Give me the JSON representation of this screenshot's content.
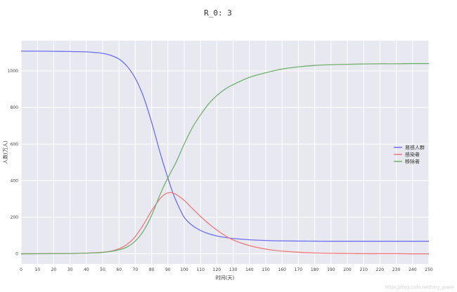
{
  "chart_data": {
    "type": "line",
    "title": "R_0: 3",
    "xlabel": "时间(天)",
    "ylabel": "人数(万人)",
    "xlim": [
      0,
      250
    ],
    "ylim": [
      -55,
      1165
    ],
    "x_ticks": [
      0,
      10,
      20,
      30,
      40,
      50,
      60,
      70,
      80,
      90,
      100,
      110,
      120,
      130,
      140,
      150,
      160,
      170,
      180,
      190,
      200,
      210,
      220,
      230,
      240,
      250
    ],
    "y_ticks": [
      0,
      200,
      400,
      600,
      800,
      1000
    ],
    "grid": true,
    "legend_position": "right",
    "x": [
      0,
      10,
      20,
      30,
      40,
      45,
      50,
      55,
      60,
      65,
      70,
      75,
      80,
      85,
      88,
      90,
      92,
      95,
      100,
      105,
      110,
      115,
      120,
      125,
      130,
      140,
      150,
      160,
      170,
      180,
      190,
      200,
      210,
      220,
      230,
      240,
      250
    ],
    "series": [
      {
        "name": "易感人群",
        "color": "#6b6ff0",
        "values": [
          1108,
          1108,
          1107,
          1106,
          1104,
          1101,
          1096,
          1085,
          1065,
          1025,
          960,
          860,
          720,
          560,
          470,
          415,
          360,
          290,
          200,
          155,
          128,
          110,
          98,
          90,
          84,
          77,
          73,
          71,
          70,
          69.5,
          69,
          69,
          69,
          69,
          69,
          69,
          69
        ]
      },
      {
        "name": "感染者",
        "color": "#f07878",
        "values": [
          1,
          1,
          1.5,
          2,
          4,
          6,
          9,
          15,
          28,
          52,
          95,
          160,
          235,
          300,
          325,
          333,
          335,
          325,
          292,
          248,
          205,
          165,
          130,
          100,
          76,
          45,
          26,
          15,
          9,
          5,
          3,
          2,
          1,
          1,
          1,
          0,
          0
        ]
      },
      {
        "name": "移除者",
        "color": "#6fb06f",
        "values": [
          0,
          0.5,
          1,
          2,
          4,
          5,
          8,
          13,
          22,
          38,
          70,
          125,
          210,
          320,
          380,
          415,
          450,
          500,
          600,
          690,
          760,
          820,
          865,
          900,
          925,
          965,
          990,
          1010,
          1022,
          1030,
          1034,
          1036,
          1038,
          1039,
          1039,
          1040,
          1040
        ]
      }
    ]
  },
  "watermark": "https://blog.csdn.net/tony_yuwei"
}
